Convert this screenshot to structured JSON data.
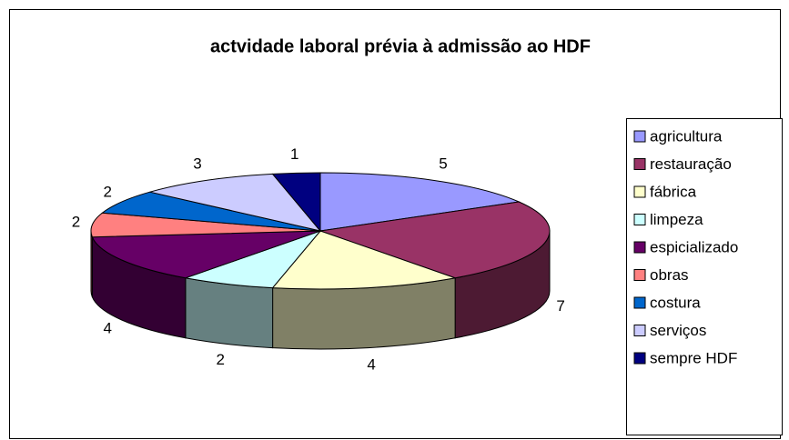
{
  "chart_data": {
    "type": "pie3d",
    "title": "actvidade laboral prévia à admissão ao HDF",
    "categories": [
      "agricultura",
      "restauração",
      "fábrica",
      "limpeza",
      "espicializado",
      "obras",
      "costura",
      "serviços",
      "sempre HDF"
    ],
    "values": [
      5,
      7,
      4,
      2,
      4,
      2,
      2,
      3,
      1
    ],
    "colors": [
      "#9999ff",
      "#993366",
      "#ffffcc",
      "#ccffff",
      "#660066",
      "#ff8080",
      "#0066cc",
      "#ccccff",
      "#000080"
    ],
    "legend": "right"
  }
}
